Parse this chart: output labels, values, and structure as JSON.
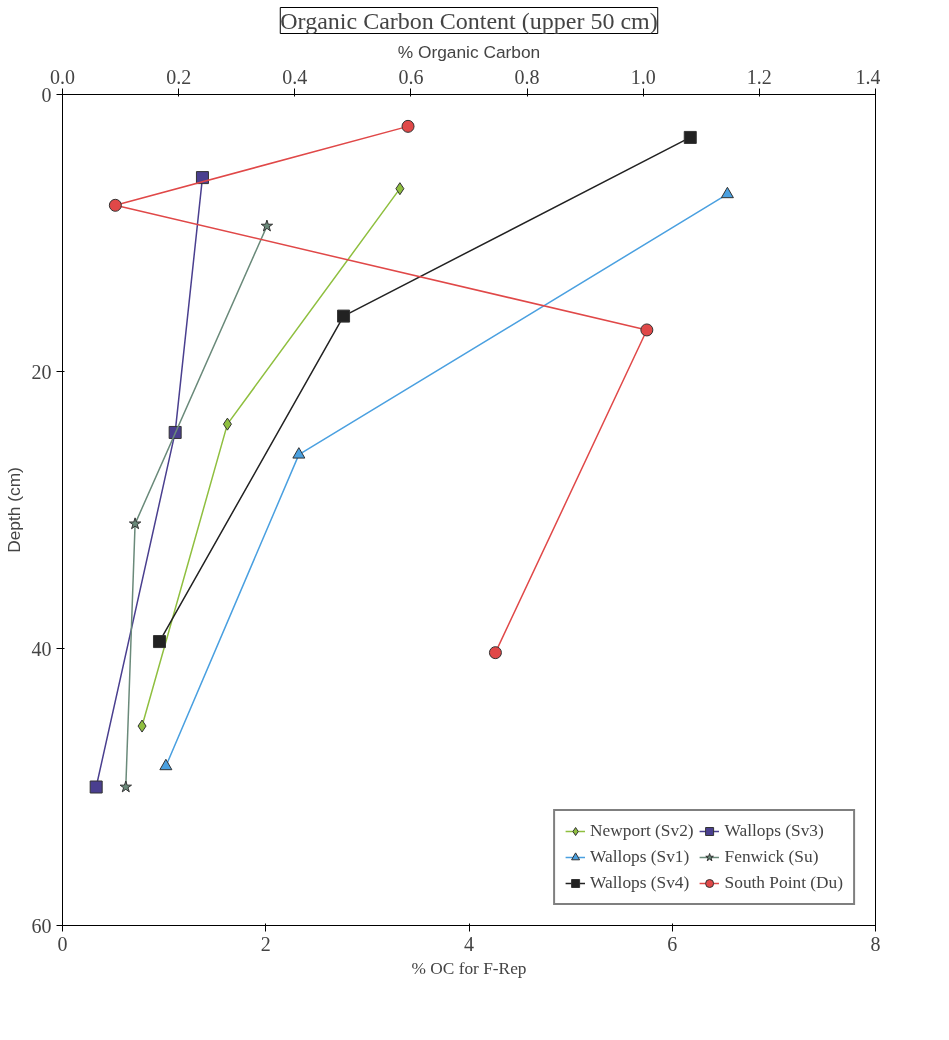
{
  "chart_data": {
    "type": "line",
    "title": "Organic Carbon Content (upper 50 cm)",
    "xlabel": "% OC for F-Rep",
    "x2label": "% Organic Carbon",
    "ylabel": "Depth (cm)",
    "xlim": [
      0,
      8
    ],
    "xticks": [
      0,
      2,
      4,
      6,
      8
    ],
    "x2lim": [
      0,
      1.4
    ],
    "x2ticks": [
      {
        "value": 0,
        "label": "0.0"
      },
      0.2,
      0.4,
      0.6,
      0.8,
      {
        "value": 1,
        "label": "1.0"
      },
      1.2,
      1.4
    ],
    "ylim": [
      60,
      0
    ],
    "yticks": [
      0,
      20,
      40,
      60
    ],
    "grid": false,
    "legend": "bottom right",
    "series": [
      {
        "name": "Newport (Sv2)",
        "color": "#8fbf3f",
        "marker": "diamond",
        "axis": "x2",
        "x": [
          0.581,
          0.284,
          0.137
        ],
        "values": [
          6.8,
          23.8,
          45.6
        ]
      },
      {
        "name": "Wallops (Sv1)",
        "color": "#4aa0e0",
        "marker": "triangle",
        "axis": "x2",
        "x": [
          1.145,
          0.407,
          0.178
        ],
        "values": [
          7.2,
          26.0,
          48.5
        ]
      },
      {
        "name": "Wallops (Sv4)",
        "color": "#222222",
        "marker": "square",
        "axis": "x2",
        "x": [
          1.081,
          0.484,
          0.167
        ],
        "values": [
          3.1,
          16.0,
          39.5
        ]
      },
      {
        "name": "Wallops (Sv3)",
        "color": "#4a3f8f",
        "marker": "square",
        "axis": "x2",
        "x": [
          0.241,
          0.194,
          0.058
        ],
        "values": [
          6.0,
          24.4,
          50.0
        ]
      },
      {
        "name": "Fenwick (Su)",
        "color": "#6a8a7a",
        "marker": "star",
        "axis": "x2",
        "x": [
          0.352,
          0.125,
          0.109
        ],
        "values": [
          9.5,
          31.0,
          50.0
        ]
      },
      {
        "name": "South Point (Du)",
        "color": "#e04848",
        "marker": "circle",
        "x": [
          3.4,
          0.52,
          5.75,
          4.26
        ],
        "values": [
          2.3,
          8.0,
          17.0,
          40.3
        ]
      }
    ]
  }
}
